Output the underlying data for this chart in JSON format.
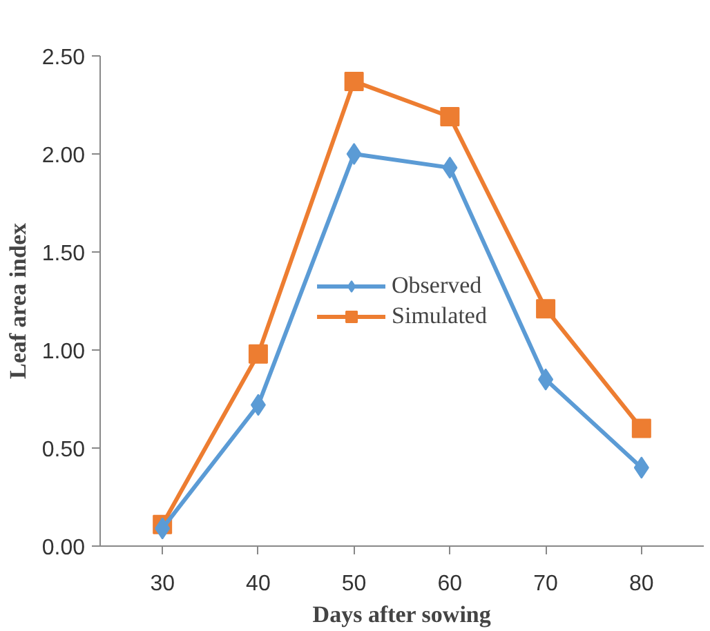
{
  "chart_data": {
    "type": "line",
    "xlabel": "Days after sowing",
    "ylabel": "Leaf area index",
    "categories": [
      "30",
      "40",
      "50",
      "60",
      "70",
      "80"
    ],
    "series": [
      {
        "name": "Observed",
        "color": "#5b9bd5",
        "marker": "diamond",
        "values": [
          0.09,
          0.72,
          2.0,
          1.93,
          0.85,
          0.4
        ]
      },
      {
        "name": "Simulated",
        "color": "#ed7d31",
        "marker": "square",
        "values": [
          0.11,
          0.98,
          2.37,
          2.19,
          1.21,
          0.6
        ]
      }
    ],
    "ylim": [
      0,
      2.5
    ],
    "yticks": [
      {
        "value": 0,
        "label": "0.00"
      },
      {
        "value": 0.5,
        "label": "0.50"
      },
      {
        "value": 1,
        "label": "1.00"
      },
      {
        "value": 1.5,
        "label": "1.50"
      },
      {
        "value": 2,
        "label": "2.00"
      },
      {
        "value": 2.5,
        "label": "2.50"
      }
    ],
    "grid": false,
    "legend": "center",
    "line_style": "solid"
  }
}
